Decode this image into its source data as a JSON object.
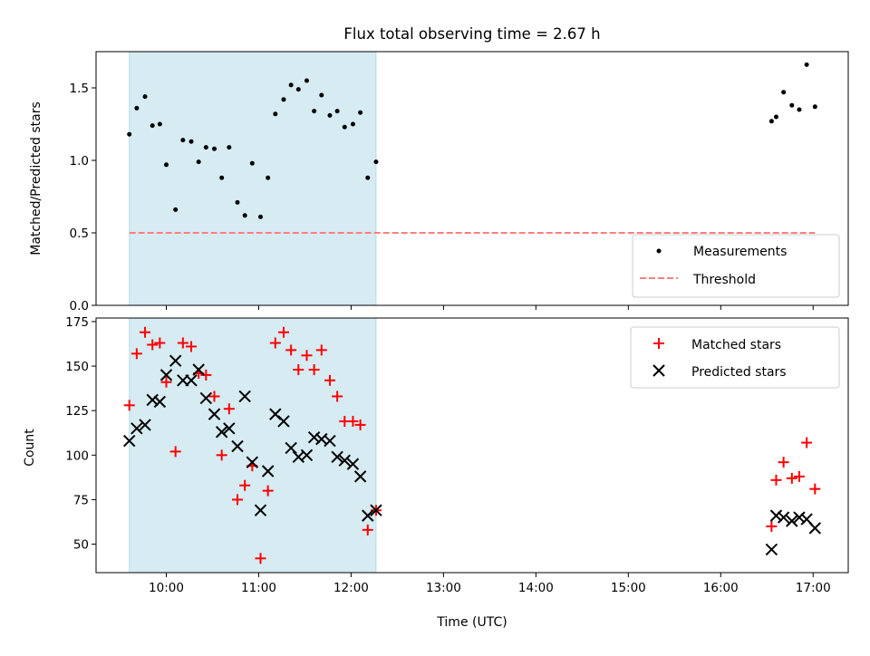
{
  "colors": {
    "band": "#add8e6",
    "measurement": "#000000",
    "threshold": "#ff7f7f",
    "matched": "#ff0000",
    "predicted": "#000000"
  },
  "chart_data": [
    {
      "type": "scatter",
      "title": "Flux total observing time = 2.67 h",
      "xlabel": "",
      "ylabel": "Matched/Predicted stars",
      "xlim": [
        9.24,
        17.38
      ],
      "ylim": [
        0,
        1.75
      ],
      "yticks": [
        0.0,
        0.5,
        1.0,
        1.5
      ],
      "ytick_labels": [
        "0.0",
        "0.5",
        "1.0",
        "1.5"
      ],
      "shaded_span": [
        9.6,
        12.27
      ],
      "grid": false,
      "legend_position": "lower right",
      "series": [
        {
          "name": "Measurements",
          "marker": "dot",
          "x": [
            9.6,
            9.68,
            9.77,
            9.85,
            9.93,
            10.0,
            10.1,
            10.18,
            10.27,
            10.35,
            10.43,
            10.52,
            10.6,
            10.68,
            10.77,
            10.85,
            10.93,
            11.02,
            11.1,
            11.18,
            11.27,
            11.35,
            11.43,
            11.52,
            11.6,
            11.68,
            11.77,
            11.85,
            11.93,
            12.02,
            12.1,
            12.18,
            12.27,
            16.55,
            16.6,
            16.68,
            16.77,
            16.85,
            16.93,
            17.02
          ],
          "y": [
            1.18,
            1.36,
            1.44,
            1.24,
            1.25,
            0.97,
            0.66,
            1.14,
            1.13,
            0.99,
            1.09,
            1.08,
            0.88,
            1.09,
            0.71,
            0.62,
            0.98,
            0.61,
            0.88,
            1.32,
            1.42,
            1.52,
            1.49,
            1.55,
            1.34,
            1.45,
            1.31,
            1.34,
            1.23,
            1.25,
            1.33,
            0.88,
            0.99,
            1.27,
            1.3,
            1.47,
            1.38,
            1.35,
            1.66,
            1.37
          ]
        },
        {
          "name": "Threshold",
          "type": "line",
          "style": "dashed",
          "x": [
            9.6,
            17.02
          ],
          "y": [
            0.5,
            0.5
          ]
        }
      ]
    },
    {
      "type": "scatter",
      "xlabel": "Time (UTC)",
      "ylabel": "Count",
      "xlim": [
        9.24,
        17.38
      ],
      "ylim": [
        34,
        177
      ],
      "xticks": [
        10,
        11,
        12,
        13,
        14,
        15,
        16,
        17
      ],
      "xtick_labels": [
        "10:00",
        "11:00",
        "12:00",
        "13:00",
        "14:00",
        "15:00",
        "16:00",
        "17:00"
      ],
      "yticks": [
        50,
        75,
        100,
        125,
        150,
        175
      ],
      "ytick_labels": [
        "50",
        "75",
        "100",
        "125",
        "150",
        "175"
      ],
      "shaded_span": [
        9.6,
        12.27
      ],
      "grid": false,
      "legend_position": "upper right",
      "series": [
        {
          "name": "Matched stars",
          "marker": "plus",
          "x": [
            9.6,
            9.68,
            9.77,
            9.85,
            9.93,
            10.0,
            10.1,
            10.18,
            10.27,
            10.35,
            10.43,
            10.52,
            10.6,
            10.68,
            10.77,
            10.85,
            10.93,
            11.02,
            11.1,
            11.18,
            11.27,
            11.35,
            11.43,
            11.52,
            11.6,
            11.68,
            11.77,
            11.85,
            11.93,
            12.02,
            12.1,
            12.18,
            12.27,
            16.55,
            16.6,
            16.68,
            16.77,
            16.85,
            16.93,
            17.02
          ],
          "y": [
            128,
            157,
            169,
            162,
            163,
            141,
            102,
            163,
            161,
            146,
            145,
            133,
            100,
            126,
            75,
            83,
            94,
            42,
            80,
            163,
            169,
            159,
            148,
            156,
            148,
            159,
            142,
            133,
            119,
            119,
            117,
            58,
            69,
            60,
            86,
            96,
            87,
            88,
            107,
            81
          ]
        },
        {
          "name": "Predicted stars",
          "marker": "x",
          "x": [
            9.6,
            9.68,
            9.77,
            9.85,
            9.93,
            10.0,
            10.1,
            10.18,
            10.27,
            10.35,
            10.43,
            10.52,
            10.6,
            10.68,
            10.77,
            10.85,
            10.93,
            11.02,
            11.1,
            11.18,
            11.27,
            11.35,
            11.43,
            11.52,
            11.6,
            11.68,
            11.77,
            11.85,
            11.93,
            12.02,
            12.1,
            12.18,
            12.27,
            16.55,
            16.6,
            16.68,
            16.77,
            16.85,
            16.93,
            17.02
          ],
          "y": [
            108,
            115,
            117,
            131,
            130,
            145,
            153,
            142,
            142,
            148,
            132,
            123,
            113,
            115,
            105,
            133,
            96,
            69,
            91,
            123,
            119,
            104,
            99,
            100,
            110,
            109,
            108,
            99,
            97,
            95,
            88,
            66,
            69,
            47,
            66,
            65,
            63,
            65,
            64,
            59
          ]
        }
      ]
    }
  ]
}
